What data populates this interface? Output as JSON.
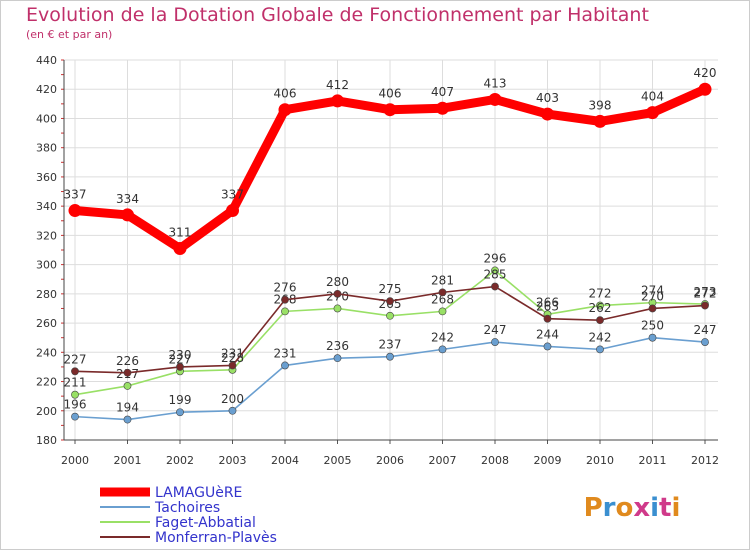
{
  "chart_data": {
    "type": "line",
    "title": "Evolution de la Dotation Globale de Fonctionnement par Habitant",
    "subtitle": "(en € et par an)",
    "xlabel": "",
    "ylabel": "",
    "ylim": [
      180,
      440
    ],
    "yticks": [
      180,
      200,
      220,
      240,
      260,
      280,
      300,
      320,
      340,
      360,
      380,
      400,
      420,
      440
    ],
    "grid": true,
    "legend_position": "bottom-left",
    "x": [
      "2000",
      "2001",
      "2002",
      "2003",
      "2004",
      "2005",
      "2006",
      "2007",
      "2008",
      "2009",
      "2010",
      "2011",
      "2012"
    ],
    "series": [
      {
        "name": "LAMAGUèRE",
        "color": "#ff0000",
        "values": [
          337,
          334,
          311,
          337,
          406,
          412,
          406,
          407,
          413,
          403,
          398,
          404,
          420
        ]
      },
      {
        "name": "Tachoires",
        "color": "#6a9fd0",
        "values": [
          196,
          194,
          199,
          200,
          231,
          236,
          237,
          242,
          247,
          244,
          242,
          250,
          247
        ]
      },
      {
        "name": "Faget-Abbatial",
        "color": "#99e066",
        "values": [
          211,
          217,
          227,
          228,
          268,
          270,
          265,
          268,
          296,
          266,
          272,
          274,
          273
        ]
      },
      {
        "name": "Monferran-Plavès",
        "color": "#7a2a2a",
        "values": [
          227,
          226,
          230,
          231,
          276,
          280,
          275,
          281,
          285,
          263,
          262,
          270,
          272
        ]
      }
    ]
  },
  "logo": {
    "text": "Proxiti"
  },
  "colors": {
    "title": "#c0306a",
    "axis_text": "#333333",
    "grid": "#dddddd",
    "legend_text": "#3333cc"
  }
}
